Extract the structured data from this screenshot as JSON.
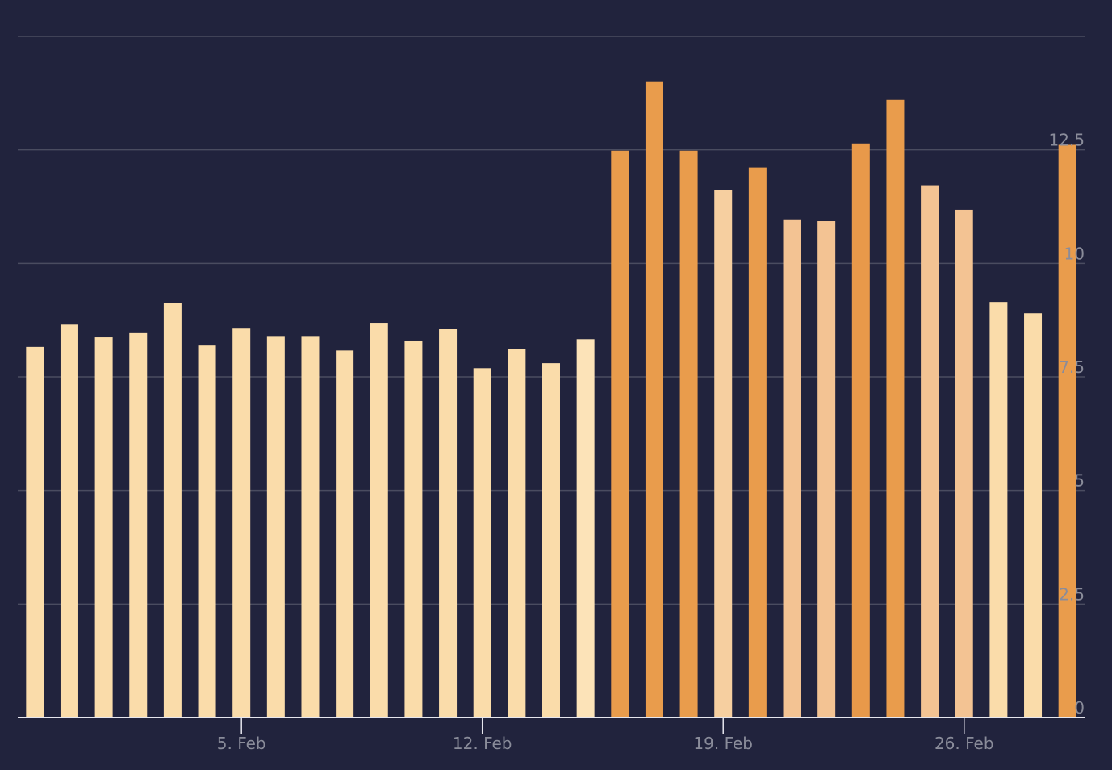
{
  "chart_data": {
    "type": "bar",
    "categories": [
      null,
      null,
      null,
      null,
      null,
      null,
      "5. Feb",
      null,
      null,
      null,
      null,
      null,
      null,
      "12. Feb",
      null,
      null,
      null,
      null,
      null,
      null,
      "19. Feb",
      null,
      null,
      null,
      null,
      null,
      null,
      "26. Feb",
      null,
      null,
      null
    ],
    "values": [
      8.16,
      8.65,
      8.37,
      8.48,
      9.12,
      8.19,
      8.58,
      8.4,
      8.4,
      8.08,
      8.69,
      8.3,
      8.55,
      7.69,
      8.12,
      7.8,
      8.33,
      12.48,
      14.01,
      12.48,
      11.61,
      12.11,
      10.97,
      10.93,
      12.64,
      13.6,
      11.72,
      11.18,
      9.15,
      8.9,
      12.61
    ],
    "colors": [
      "#fadcaa",
      "#fadcaa",
      "#fadcaa",
      "#fadcaa",
      "#fadcaa",
      "#fadcaa",
      "#fadcaa",
      "#fadcaa",
      "#fadcaa",
      "#fadcaa",
      "#fadcaa",
      "#fadcaa",
      "#fadcaa",
      "#fadcaa",
      "#fadcaa",
      "#fadcaa",
      "#fce3b8",
      "#e99c4c",
      "#e99c4c",
      "#e99c4c",
      "#f6cfa0",
      "#e99c4c",
      "#f3c393",
      "#f3c393",
      "#e8994a",
      "#e99c4c",
      "#f3c393",
      "#f3c393",
      "#fadcaa",
      "#fadcaa",
      "#e99c4c"
    ],
    "ylim": [
      0,
      15
    ],
    "yticks": [
      0,
      2.5,
      5,
      7.5,
      10,
      12.5
    ],
    "grid": true
  }
}
